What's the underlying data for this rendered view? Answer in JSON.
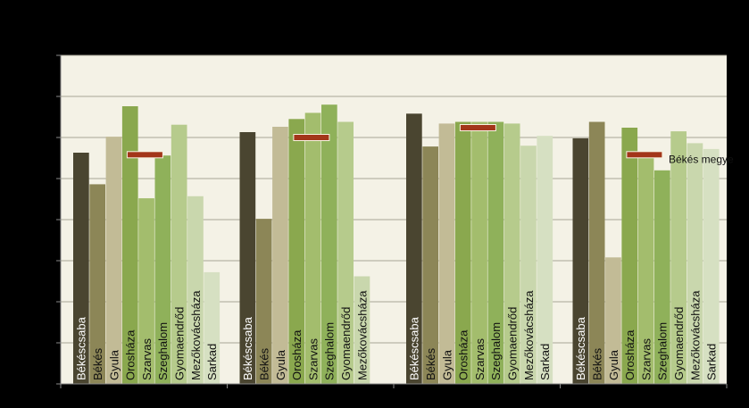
{
  "chart_data": {
    "type": "bar",
    "title": "",
    "xlabel": "",
    "ylabel": "",
    "ylim": [
      0,
      8
    ],
    "grid": true,
    "categories": [
      "Békéscsaba",
      "Békés",
      "Gyula",
      "Orosháza",
      "Szarvas",
      "Szeghalom",
      "Gyomaendrőd",
      "Mezőkovácsháza",
      "Sarkad"
    ],
    "groups": [
      {
        "values": [
          5.63,
          4.86,
          6.02,
          6.76,
          4.52,
          5.56,
          6.31,
          4.57,
          2.72
        ],
        "reference": 5.58
      },
      {
        "values": [
          6.13,
          4.02,
          6.26,
          6.45,
          6.6,
          6.8,
          6.38,
          2.62
        ],
        "reference": 6.0,
        "skip_index": 2
      },
      {
        "values": [
          6.58,
          5.78,
          6.34,
          6.38,
          6.38,
          6.38,
          6.34,
          5.8,
          6.04
        ],
        "reference": 6.24
      },
      {
        "values": [
          5.98,
          6.38,
          3.08,
          6.24,
          5.6,
          5.2,
          6.15,
          5.86,
          5.72
        ],
        "reference": 5.58
      }
    ],
    "series_colors": [
      "#4a4530",
      "#8c8657",
      "#c2bb96",
      "#8aa84e",
      "#a3bd6d",
      "#8fb15a",
      "#b6cb8c",
      "#c9d7ad",
      "#d6e0c2"
    ],
    "reference_color": "#a3361a",
    "legend": {
      "label": "Békés megye",
      "position": "right"
    }
  }
}
